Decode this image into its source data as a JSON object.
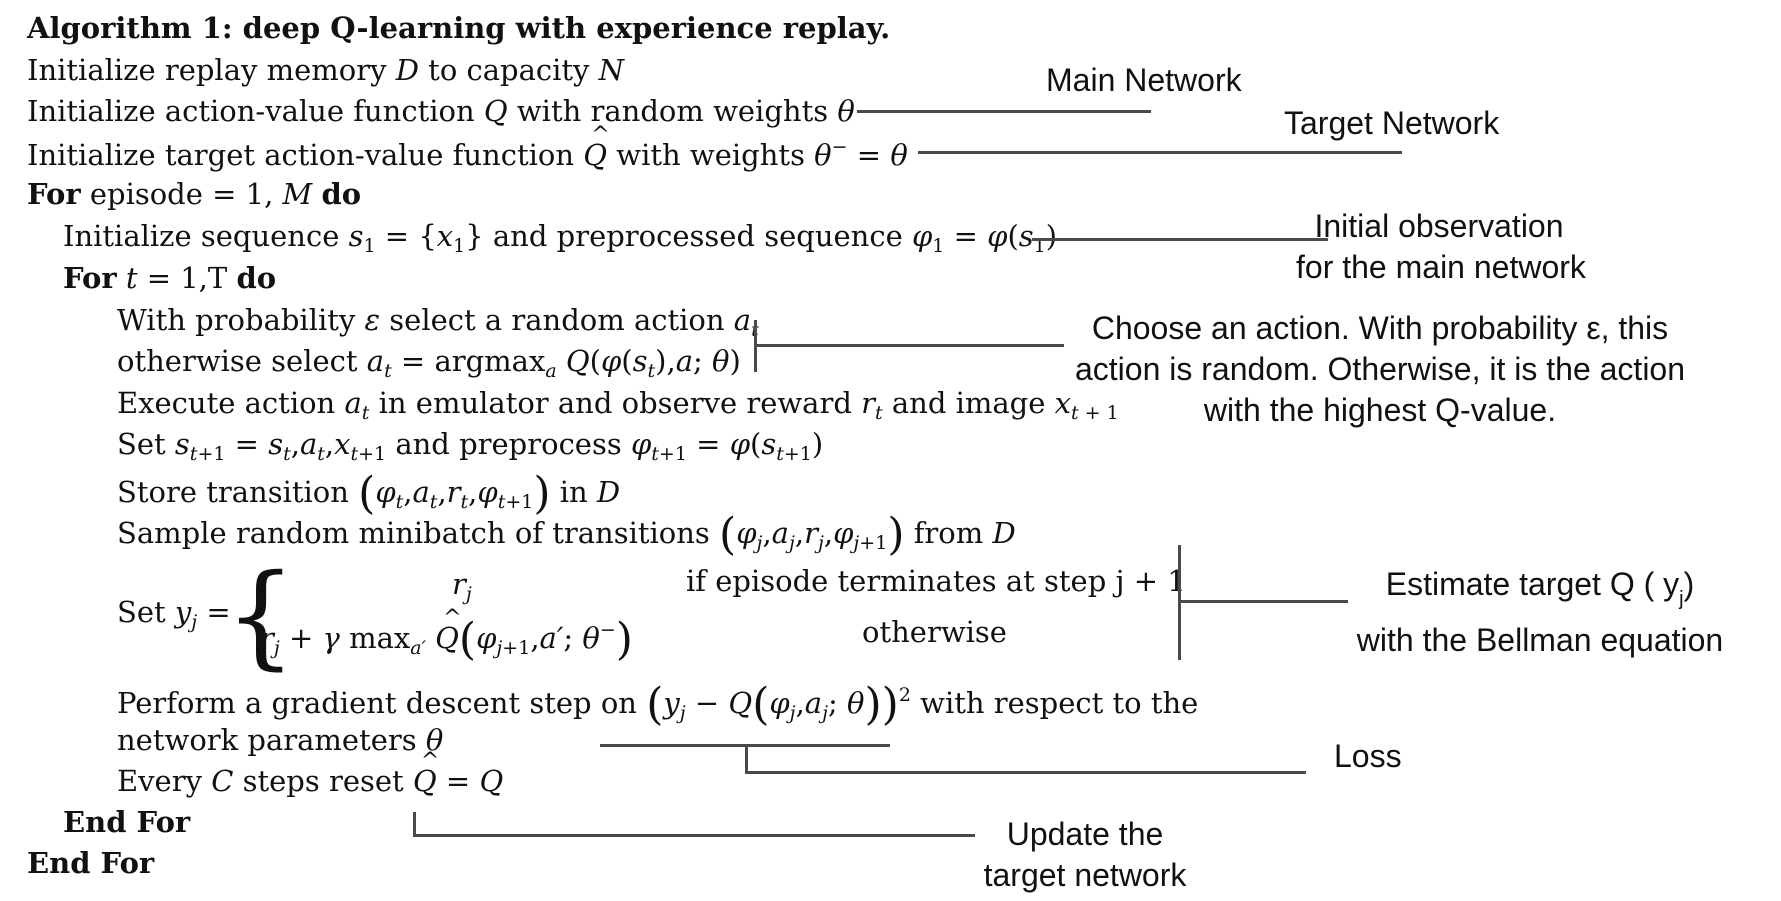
{
  "algorithm": {
    "title": "Algorithm 1: deep Q-learning with experience replay.",
    "lines": [
      "Initialize replay memory D to capacity N",
      "Initialize action-value function Q with random weights θ",
      "Initialize target action-value function Q̂ with weights θ⁻ = θ",
      "For episode = 1, M do",
      "Initialize sequence s₁ = {x₁} and preprocessed sequence φ₁ = φ(s₁)",
      "For t = 1,T do",
      "With probability ε select a random action aₜ",
      "otherwise select aₜ = argmaxₐ Q(φ(sₜ),a; θ)",
      "Execute action aₜ in emulator and observe reward rₜ and image xₜ₊₁",
      "Set sₜ₊₁ = sₜ,aₜ,xₜ₊₁ and preprocess φₜ₊₁ = φ(sₜ₊₁)",
      "Store transition (φₜ,aₜ,rₜ,φₜ₊₁) in D",
      "Sample random minibatch of transitions (φⱼ,aⱼ,rⱼ,φⱼ₊₁) from D",
      "Set yⱼ = { rⱼ if episode terminates at step j+1 ; rⱼ + γ maxₐ′ Q̂(φⱼ₊₁,a′; θ⁻) otherwise }",
      "Perform a gradient descent step on (yⱼ − Q(φⱼ,aⱼ; θ))² with respect to the",
      "network parameters θ",
      "Every C steps reset Q̂ = Q",
      "End For",
      "End For"
    ]
  },
  "annotations": {
    "main_network": "Main Network",
    "target_network": "Target Network",
    "initial_observation": [
      "Initial observation",
      "for the main network"
    ],
    "choose_action": [
      "Choose an action. With probability ε, this",
      "action is random. Otherwise, it is the action",
      "with the highest Q-value."
    ],
    "estimate_target": [
      "Estimate target Q ( y",
      "j",
      ")",
      "with the Bellman equation"
    ],
    "loss": "Loss",
    "update_target": [
      "Update the",
      "target network"
    ]
  },
  "colors": {
    "text": "#111111",
    "connector": "#4a4a4a",
    "background": "#ffffff"
  }
}
